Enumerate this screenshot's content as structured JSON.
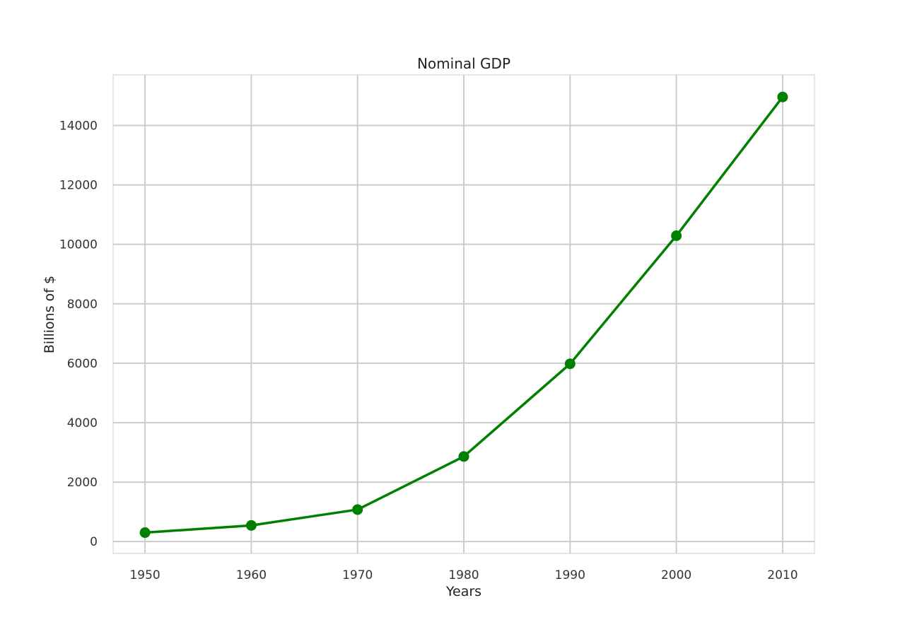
{
  "chart_data": {
    "type": "line",
    "title": "Nominal GDP",
    "xlabel": "Years",
    "ylabel": "Billions of $",
    "x": [
      1950,
      1960,
      1970,
      1980,
      1990,
      2000,
      2010
    ],
    "series": [
      {
        "values": [
          300.2,
          543.3,
          1075.9,
          2862.5,
          5979.6,
          10289.7,
          14958.3
        ]
      }
    ],
    "xticks": [
      "1950",
      "1960",
      "1970",
      "1980",
      "1990",
      "2000",
      "2010"
    ],
    "yticks": [
      0,
      2000,
      4000,
      6000,
      8000,
      10000,
      12000,
      14000
    ],
    "xlim": [
      1947,
      2013
    ],
    "ylim": [
      -400,
      15700
    ],
    "grid": true,
    "line_color": "#008000",
    "grid_color": "#cccccc",
    "frame_color": "#cccccc"
  }
}
